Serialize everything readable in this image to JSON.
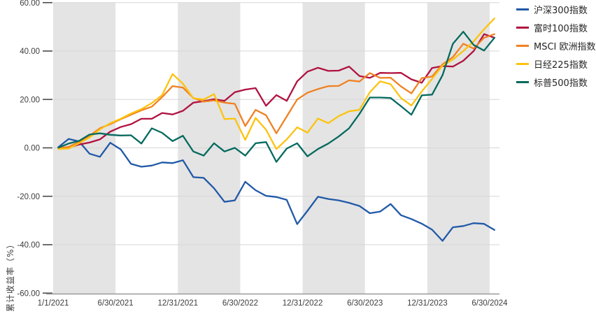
{
  "chart_data": {
    "type": "line",
    "title": "",
    "ylabel": "累计收益率（%）",
    "xlabel": "",
    "ylim": [
      -60,
      60
    ],
    "grid": "horizontal",
    "background_bands": "alternating half-year vertical shading starting gray at 1/1/2021",
    "legend_position": "top-right-outside",
    "y_ticks": [
      60,
      40,
      20,
      0,
      -20,
      -40,
      -60
    ],
    "y_tick_labels": [
      "60.00",
      "40.00",
      "20.00",
      "0.00",
      "-20.00",
      "-40.00",
      "-60.00"
    ],
    "x_tick_labels": [
      "1/1/2021",
      "6/30/2021",
      "12/31/2021",
      "6/30/2022",
      "12/31/2022",
      "6/30/2023",
      "12/31/2023",
      "6/30/2024"
    ],
    "x_unit": "monthly points, Jan 2021 - Jun 2024",
    "series": [
      {
        "name": "沪深300指数",
        "color": "#2159A8",
        "values": [
          0.3,
          3.7,
          2.7,
          -2.4,
          -3.7,
          2.1,
          -0.6,
          -6.6,
          -7.8,
          -7.3,
          -6.0,
          -6.3,
          -5.1,
          -12.1,
          -12.4,
          -16.7,
          -22.3,
          -21.7,
          -14.0,
          -17.5,
          -19.8,
          -20.3,
          -21.5,
          -31.5,
          -26.0,
          -20.2,
          -21.1,
          -21.7,
          -22.7,
          -24.0,
          -27.0,
          -26.3,
          -23.2,
          -27.8,
          -29.4,
          -31.3,
          -33.8,
          -38.4,
          -32.8,
          -32.3,
          -31.1,
          -31.4,
          -33.9
        ]
      },
      {
        "name": "富时100指数",
        "color": "#B01240",
        "values": [
          0.1,
          0.1,
          1.4,
          2.2,
          3.5,
          6.7,
          8.6,
          9.8,
          12.0,
          12.0,
          14.4,
          13.8,
          15.3,
          18.7,
          19.3,
          20.1,
          19.4,
          23.0,
          24.1,
          24.7,
          17.4,
          21.8,
          19.4,
          27.5,
          31.5,
          33.1,
          31.8,
          31.9,
          33.6,
          29.7,
          28.9,
          31.0,
          30.9,
          31.0,
          28.3,
          26.9,
          33.0,
          33.8,
          33.6,
          36.0,
          40.0,
          47.0,
          45.5
        ]
      },
      {
        "name": "MSCI 欧洲指数",
        "color": "#F08122",
        "values": [
          -0.1,
          0.4,
          2.4,
          5.0,
          8.1,
          9.8,
          11.8,
          13.7,
          15.5,
          17.0,
          21.0,
          25.5,
          24.9,
          20.6,
          19.1,
          19.6,
          18.7,
          18.2,
          9.0,
          15.7,
          13.5,
          6.0,
          13.0,
          20.0,
          22.8,
          24.3,
          25.5,
          25.6,
          27.9,
          27.4,
          30.9,
          28.9,
          29.0,
          25.4,
          22.5,
          28.8,
          29.5,
          34.5,
          37.5,
          43.0,
          41.0,
          45.5,
          47.0
        ]
      },
      {
        "name": "日经225指数",
        "color": "#FCC30F",
        "values": [
          -0.5,
          -0.3,
          1.9,
          4.3,
          7.6,
          10.2,
          12.0,
          14.2,
          16.0,
          18.5,
          21.8,
          30.5,
          26.5,
          20.5,
          20.0,
          22.2,
          11.9,
          12.1,
          3.3,
          12.4,
          7.5,
          -0.5,
          3.5,
          8.5,
          6.3,
          12.1,
          10.2,
          13.1,
          15.1,
          15.7,
          23.0,
          27.5,
          26.3,
          20.6,
          17.5,
          23.3,
          28.5,
          34.0,
          36.5,
          40.0,
          44.0,
          49.0,
          53.5
        ]
      },
      {
        "name": "标普500指数",
        "color": "#046A5E",
        "values": [
          0.1,
          1.8,
          2.9,
          5.5,
          6.0,
          5.4,
          5.1,
          5.2,
          1.8,
          8.1,
          6.2,
          2.8,
          5.0,
          -1.5,
          -3.2,
          1.9,
          -1.5,
          0.0,
          -3.2,
          1.9,
          2.4,
          -5.8,
          -0.3,
          1.9,
          -3.5,
          -0.5,
          1.8,
          4.7,
          8.1,
          14.0,
          20.8,
          20.8,
          20.6,
          17.2,
          13.7,
          21.7,
          22.0,
          30.0,
          43.0,
          48.0,
          42.5,
          40.2,
          45.5
        ]
      }
    ]
  },
  "colors": {
    "band_gray": "#E4E4E4",
    "gridline": "#D6D6D6",
    "axis_line": "#9A9A9A",
    "tick_mark": "#4A4A4A",
    "tick_text": "#3D3D3D"
  }
}
